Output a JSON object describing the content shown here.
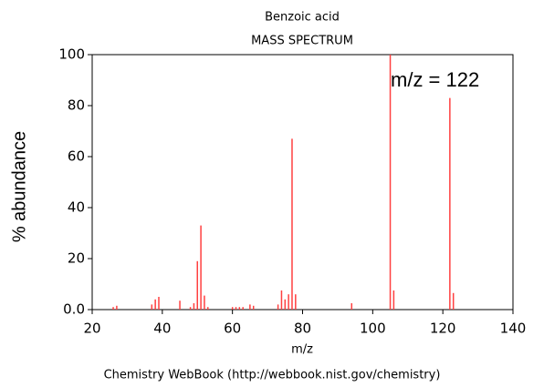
{
  "chart_data": {
    "type": "stem",
    "title": "Benzoic acid",
    "subtitle": "MASS SPECTRUM",
    "x_label": "m/z",
    "y_label": "% abundance",
    "annotation": "m/z = 122",
    "footer": "Chemistry WebBook (http://webbook.nist.gov/chemistry)",
    "color": "#ff4040",
    "x": [
      26,
      27,
      37,
      38,
      39,
      45,
      48,
      49,
      50,
      51,
      52,
      53,
      60,
      61,
      62,
      63,
      65,
      66,
      73,
      74,
      75,
      76,
      77,
      78,
      94,
      105,
      106,
      122,
      123
    ],
    "values": [
      1,
      1.5,
      2,
      4,
      5,
      3.5,
      1,
      2.5,
      19,
      33,
      5.5,
      1,
      1,
      1,
      1,
      1,
      2,
      1.5,
      2,
      7.5,
      4,
      6,
      67,
      6,
      2.5,
      100,
      7.5,
      83,
      6.5
    ],
    "xlim": [
      20,
      140
    ],
    "xticks": [
      20,
      40,
      60,
      80,
      100,
      120,
      140
    ],
    "ylim": [
      0,
      100
    ],
    "yticks": [
      {
        "value": 0,
        "label": "0.0"
      },
      20,
      40,
      60,
      80,
      100
    ]
  }
}
